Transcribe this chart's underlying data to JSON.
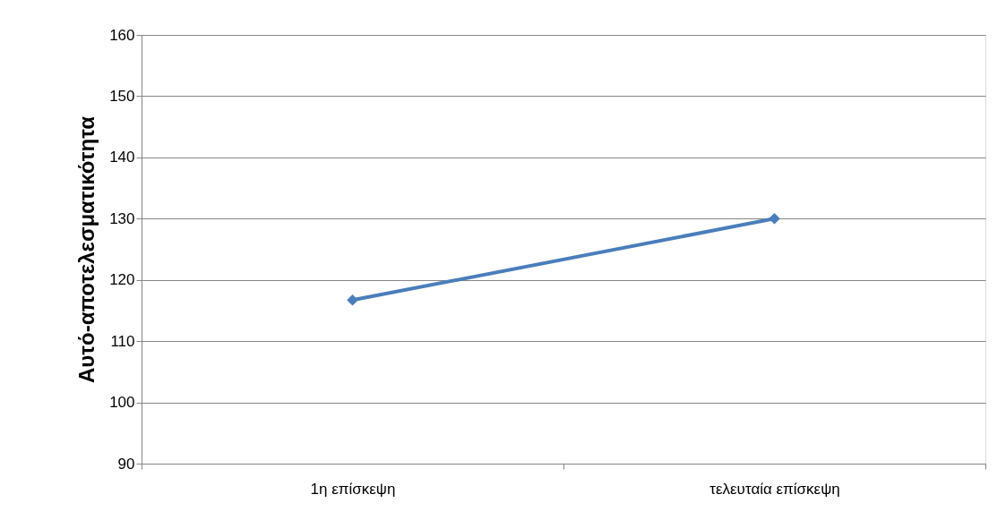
{
  "chart_data": {
    "type": "line",
    "ylabel": "Αυτό-αποτελεσματικότητα",
    "categories": [
      "1η επίσκεψη",
      "τελευταία επίσκεψη"
    ],
    "series": [
      {
        "color": "#4a7ebb",
        "values": [
          116.7,
          130
        ]
      }
    ],
    "ylim": [
      90,
      160
    ],
    "yticks": [
      90,
      100,
      110,
      120,
      130,
      140,
      150,
      160
    ],
    "grid": "y",
    "marker": "diamond",
    "line_style": "solid"
  }
}
